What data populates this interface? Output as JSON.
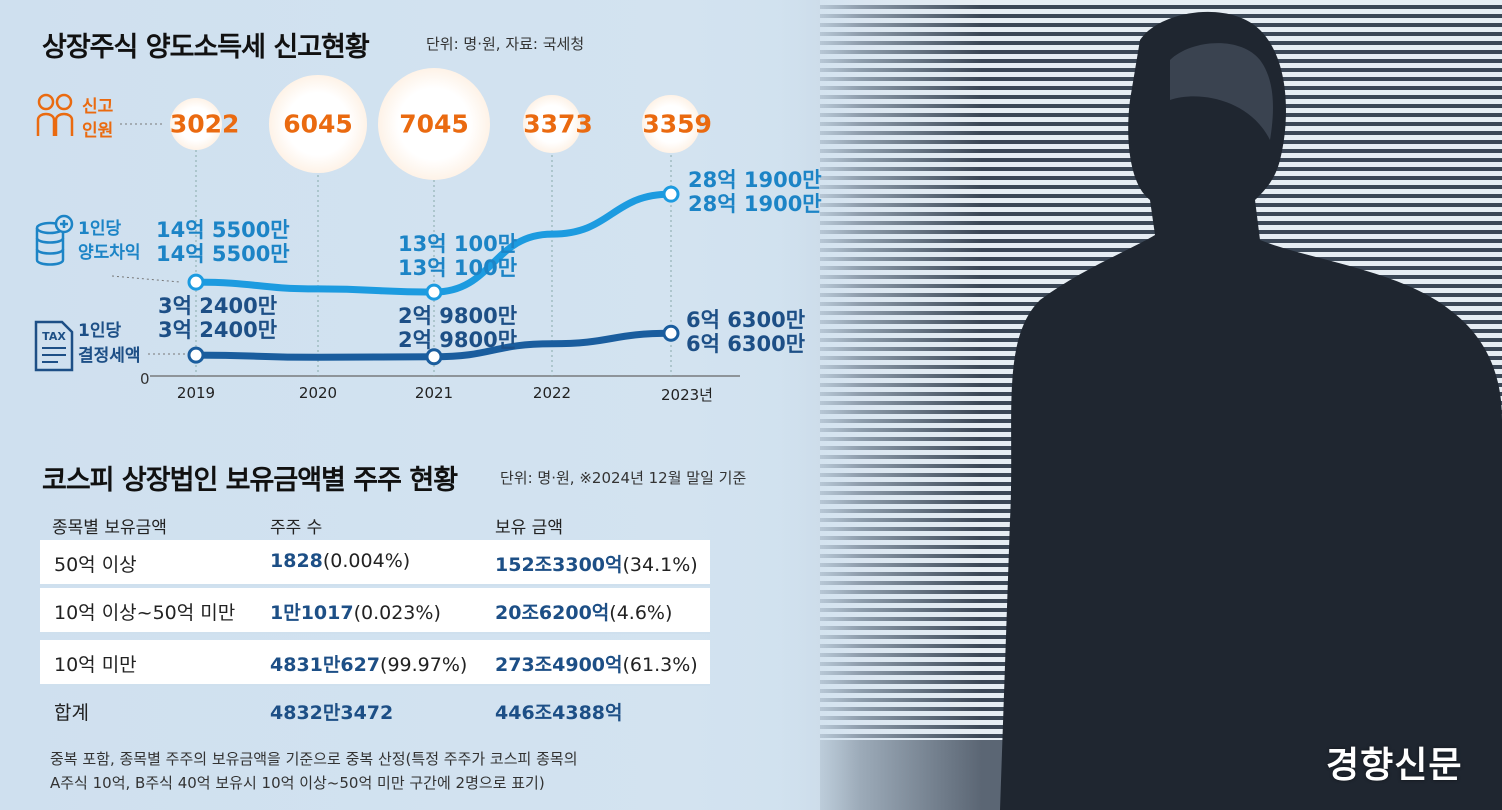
{
  "chart_data": [
    {
      "type": "line",
      "title": "상장주식 양도소득세 신고현황",
      "unit_note": "단위: 명·원, 자료: 국세청",
      "categories": [
        "2019",
        "2020",
        "2021",
        "2022",
        "2023년"
      ],
      "y_zero_label": "0",
      "series": [
        {
          "name": "신고인원",
          "values": [
            3022,
            6045,
            7045,
            3373,
            3359
          ],
          "labels": [
            "3022",
            "6045",
            "7045",
            "3373",
            "3359"
          ]
        },
        {
          "name": "1인당 양도차익",
          "values": [
            14.55,
            13.5,
            13.01,
            22.0,
            28.19
          ],
          "labels": {
            "0": "14억 5500만",
            "2": "13억 100만",
            "4": "28억 1900만"
          }
        },
        {
          "name": "1인당 결정세액",
          "values": [
            3.24,
            2.9,
            2.98,
            5.0,
            6.63
          ],
          "labels": {
            "0": "3억 2400만",
            "2": "2억 9800만",
            "4": "6억 6300만"
          }
        }
      ]
    },
    {
      "type": "table",
      "title": "코스피 상장법인 보유금액별 주주 현황",
      "unit_note": "단위: 명·원, ※2024년 12월 말일 기준",
      "columns": [
        "종목별 보유금액",
        "주주 수",
        "보유 금액"
      ],
      "rows": [
        {
          "range": "50억 이상",
          "holders": "1828",
          "holders_pct": "(0.004%)",
          "amount": "152조3300억",
          "amount_pct": "(34.1%)"
        },
        {
          "range": "10억 이상~50억 미만",
          "holders": "1만1017",
          "holders_pct": "(0.023%)",
          "amount": "20조6200억",
          "amount_pct": "(4.6%)"
        },
        {
          "range": "10억 미만",
          "holders": "4831만627",
          "holders_pct": "(99.97%)",
          "amount": "273조4900억",
          "amount_pct": "(61.3%)"
        },
        {
          "range": "합계",
          "holders": "4832만3472",
          "holders_pct": "",
          "amount": "446조4388억",
          "amount_pct": ""
        }
      ],
      "notes": [
        "중복 포함, 종목별 주주의 보유금액을 기준으로 중복 산정(특정 주주가 코스피 종목의",
        "A주식 10억, B주식 40억 보유시 10억 이상~50억 미만 구간에 2명으로 표기)"
      ]
    }
  ],
  "legend": {
    "people": [
      "신고",
      "인원"
    ],
    "gain": [
      "1인당",
      "양도차익"
    ],
    "tax": [
      "1인당",
      "결정세액"
    ],
    "tax_icon_text": "TAX"
  },
  "colors": {
    "orange": "#ea6a10",
    "gain_line": "#1c9be0",
    "tax_line": "#1a5d9e",
    "background": "#cfe0ee"
  },
  "photo": {
    "logo": "경향신문"
  }
}
